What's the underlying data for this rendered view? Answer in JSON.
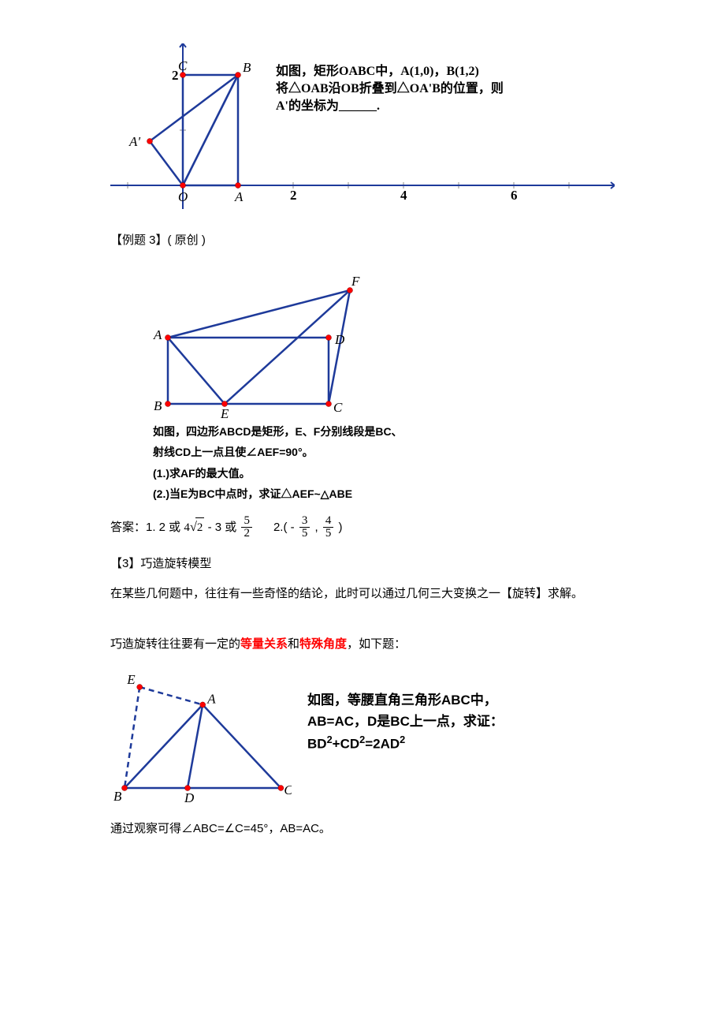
{
  "fig1": {
    "colors": {
      "line": "#1e3a9a",
      "tick": "#888888",
      "dot": "#ff0000"
    },
    "axis": {
      "xmin": -1.3,
      "xmax": 7.2,
      "ymin": -0.4,
      "ymax": 2.6,
      "xticks": [
        2,
        4,
        6
      ],
      "yticks": [
        2
      ]
    },
    "points": {
      "O": [
        0,
        0
      ],
      "A": [
        1,
        0
      ],
      "B": [
        1,
        2
      ],
      "C": [
        0,
        2
      ],
      "Ap": [
        -0.6,
        0.8
      ]
    },
    "labels": {
      "O": "O",
      "A": "A",
      "B": "B",
      "C": "C",
      "Ap": "A'"
    },
    "desc1": "如图，矩形OABC中，A(1,0)，B(1,2)",
    "desc2": "将△OAB沿OB折叠到△OA'B的位置，则",
    "desc3": "A'的坐标为______."
  },
  "example3": "【例题 3】( 原创 )",
  "fig2": {
    "colors": {
      "line": "#1e3a9a",
      "dot": "#ff0000"
    },
    "points": {
      "A": [
        0.3,
        1.4
      ],
      "B": [
        0.3,
        0
      ],
      "C": [
        3.7,
        0
      ],
      "D": [
        3.7,
        1.4
      ],
      "E": [
        1.5,
        0
      ],
      "F": [
        4.15,
        2.4
      ]
    },
    "labels": {
      "A": "A",
      "B": "B",
      "C": "C",
      "D": "D",
      "E": "E",
      "F": "F"
    },
    "cap1": "如图，四边形ABCD是矩形，E、F分别线段是BC、",
    "cap2": "射线CD上一点且使∠AEF=90°。",
    "cap3": "(1.)求AF的最大值。",
    "cap4": "(2.)当E为BC中点时，求证△AEF~△ABE"
  },
  "answers": {
    "prefix": "答案：1. 2 或",
    "mid1": "- 3 或",
    "part2": "2.( -",
    "comma": ",",
    "close": ")"
  },
  "section3": "【3】巧造旋转模型",
  "para1": "在某些几何题中，往往有一些奇怪的结论，此时可以通过几何三大变换之一【旋转】求解。",
  "para2_a": "巧造旋转往往要有一定的",
  "para2_b": "等量关系",
  "para2_c": "和",
  "para2_d": "特殊角度",
  "para2_e": "，如下题：",
  "fig3": {
    "colors": {
      "line": "#1e3a9a",
      "dash": "#1e3a9a",
      "dot": "#ff0000"
    },
    "points": {
      "A": [
        1.55,
        1.65
      ],
      "B": [
        0,
        0
      ],
      "C": [
        3.1,
        0
      ],
      "D": [
        1.25,
        0
      ],
      "E": [
        0.3,
        2.0
      ]
    },
    "labels": {
      "A": "A",
      "B": "B",
      "C": "C",
      "D": "D",
      "E": "E"
    },
    "desc1": "如图，等腰直角三角形ABC中，",
    "desc2": "AB=AC，D是BC上一点，求证：",
    "desc3_html": "BD<sup>2</sup>+CD<sup>2</sup>=2AD<sup>2</sup>"
  },
  "para3": "通过观察可得∠ABC=∠C=45°，AB=AC。"
}
